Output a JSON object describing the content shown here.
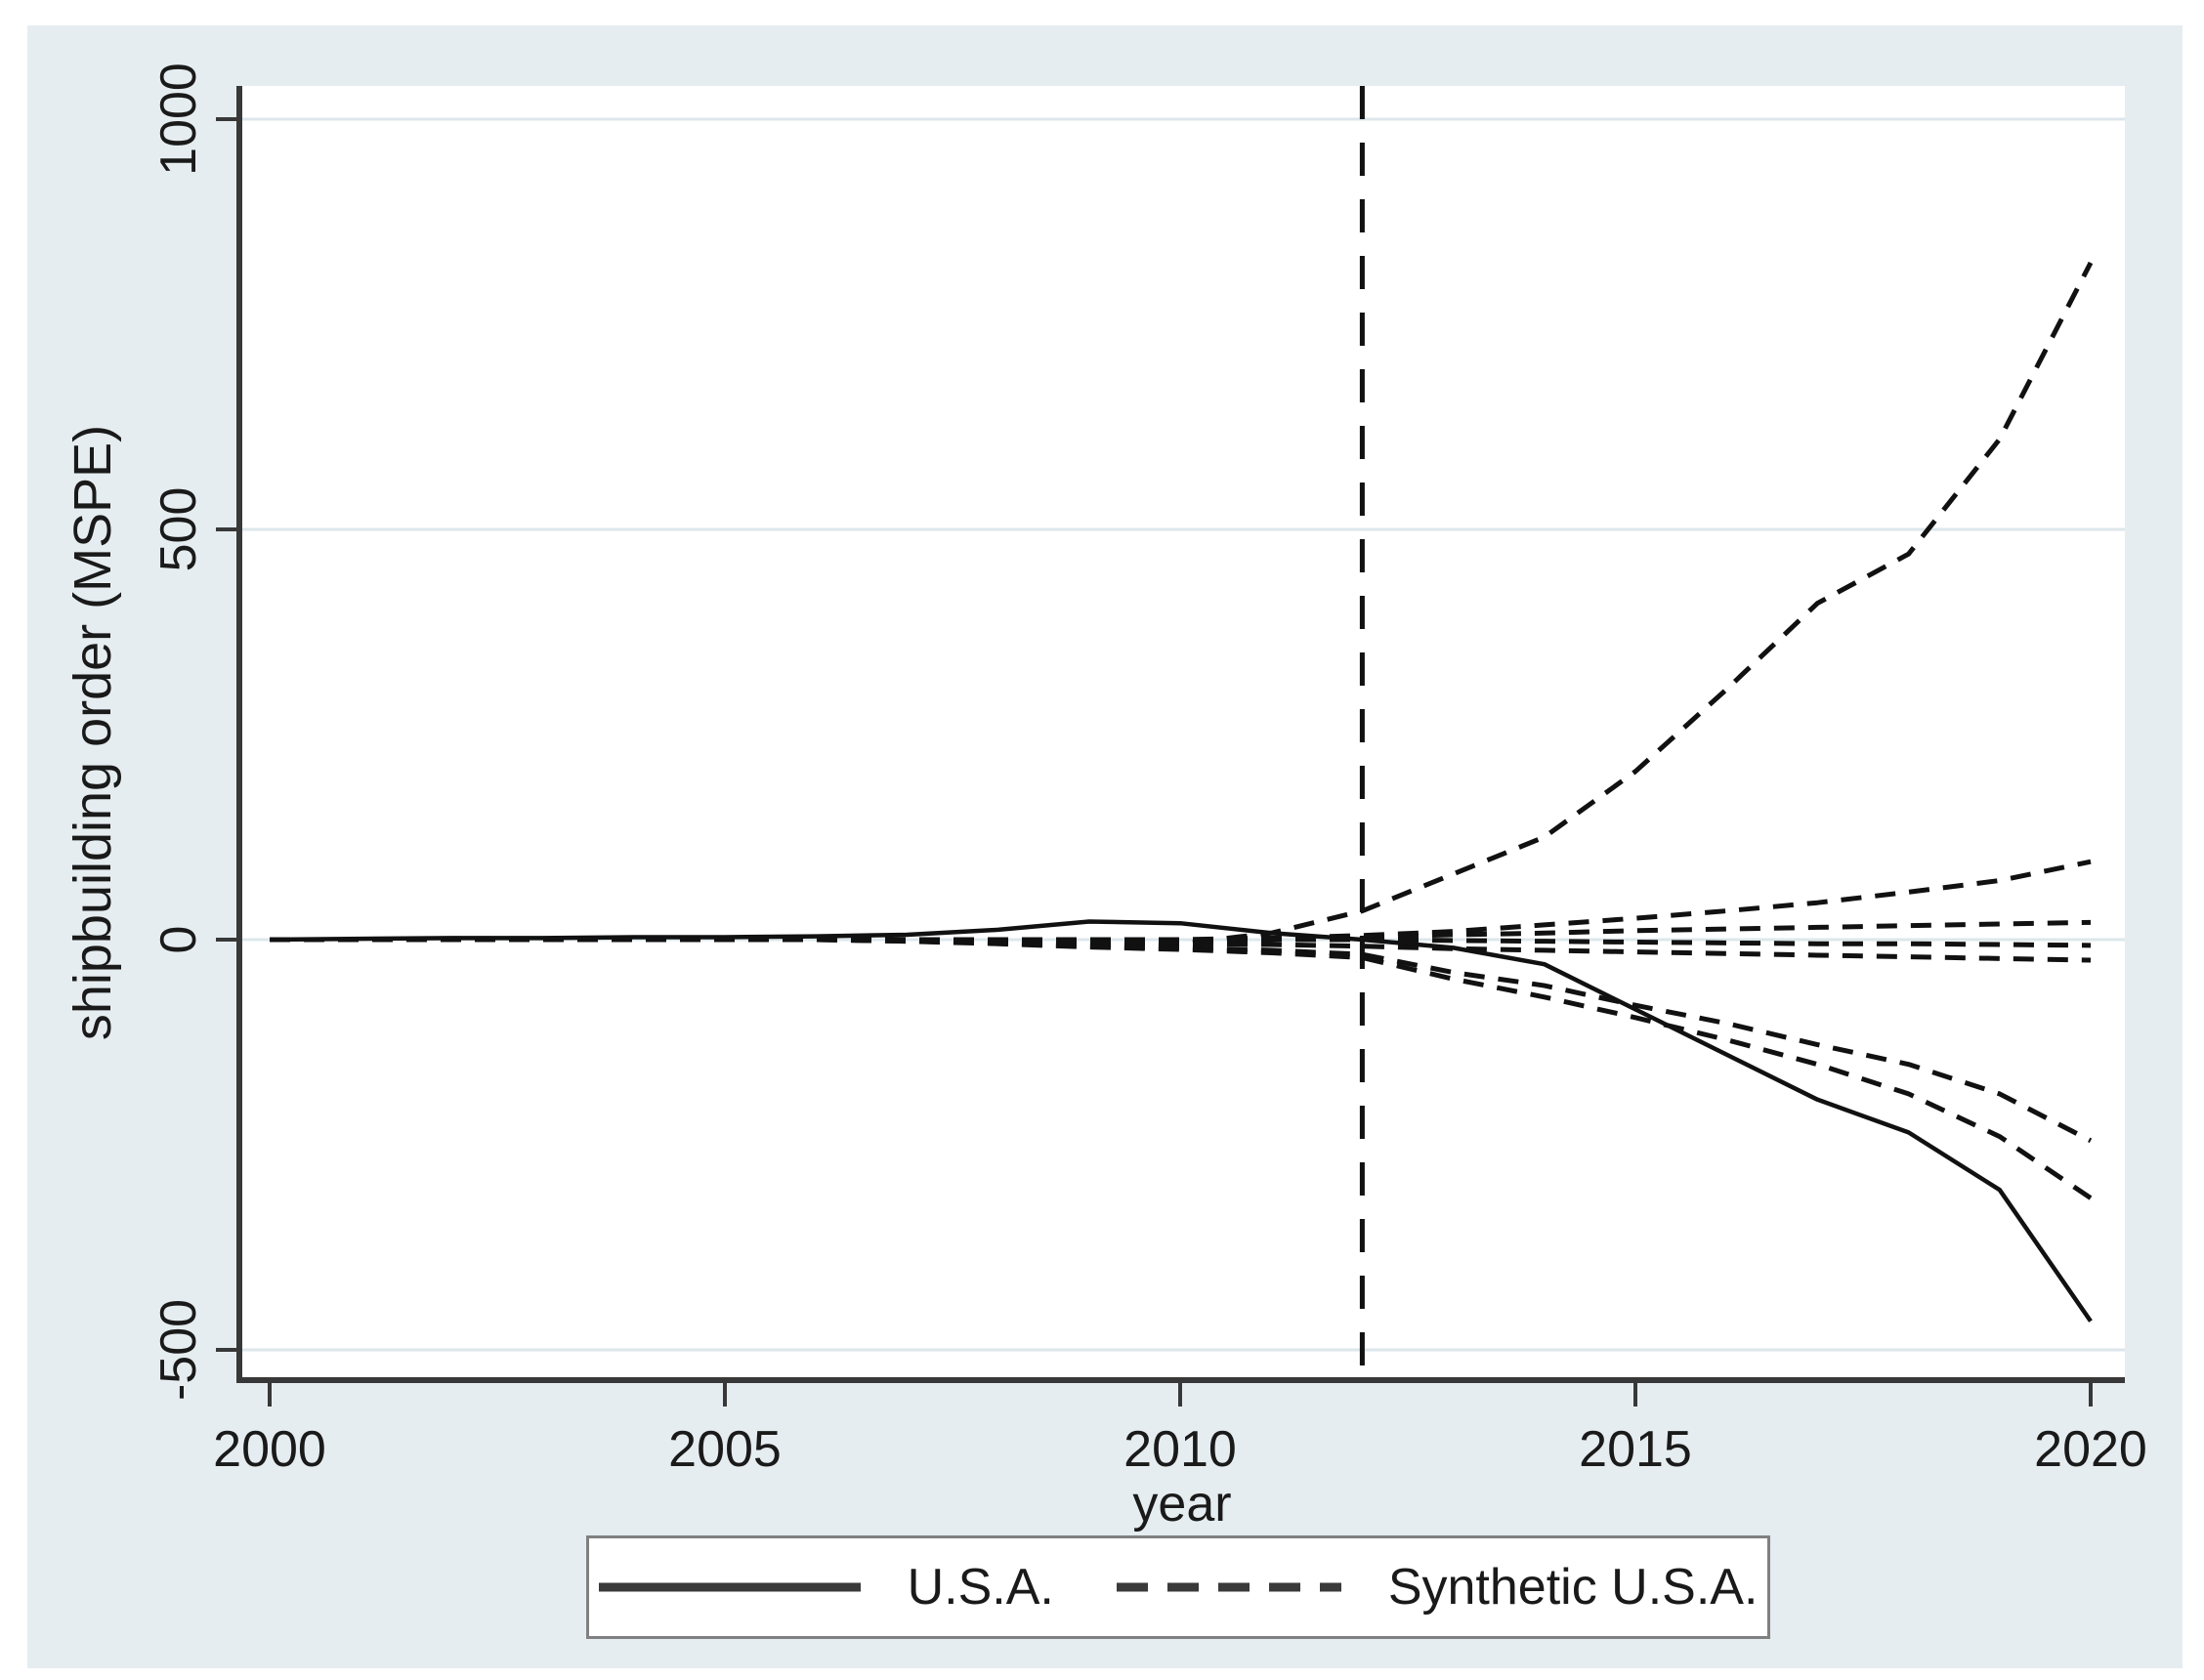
{
  "figure": {
    "background_color": "#e6edf0",
    "plot_background_color": "#ffffff",
    "line_color": "#111111",
    "axis_color": "#383838",
    "gridline_color": "#dde7eb"
  },
  "chart_data": {
    "type": "line",
    "title": "",
    "xlabel": "year",
    "ylabel": "shipbuilding order (MSPE)",
    "x_ticks": [
      2000,
      2005,
      2010,
      2015,
      2020
    ],
    "y_ticks": [
      -500,
      0,
      500,
      1000
    ],
    "xlim": [
      1999.7,
      2020.4
    ],
    "ylim": [
      -540,
      1040
    ],
    "grid": "horizontal",
    "treatment_line_x": 2012,
    "legend": {
      "position": "bottom",
      "entries": [
        {
          "label": "U.S.A.",
          "style": "solid"
        },
        {
          "label": "Synthetic U.S.A.",
          "style": "dashed"
        }
      ]
    },
    "x": [
      2000,
      2001,
      2002,
      2003,
      2004,
      2005,
      2006,
      2007,
      2008,
      2009,
      2010,
      2011,
      2012,
      2013,
      2014,
      2015,
      2016,
      2017,
      2018,
      2019,
      2020
    ],
    "series": [
      {
        "id": "usa-gap",
        "legend_group": "U.S.A.",
        "style": "solid",
        "values": [
          0,
          1,
          2,
          2,
          3,
          3,
          4,
          6,
          12,
          22,
          20,
          8,
          0,
          -10,
          -30,
          -85,
          -140,
          -195,
          -235,
          -305,
          -465
        ]
      },
      {
        "id": "synthetic-upper-extreme",
        "legend_group": "Synthetic U.S.A.",
        "style": "dashed",
        "values": [
          0,
          0,
          0,
          0,
          0,
          0,
          0,
          0,
          -2,
          -4,
          -5,
          8,
          35,
          80,
          125,
          205,
          305,
          410,
          470,
          610,
          825
        ]
      },
      {
        "id": "synthetic-rising",
        "legend_group": "Synthetic U.S.A.",
        "style": "dashed",
        "values": [
          0,
          0,
          0,
          0,
          0,
          0,
          0,
          0,
          0,
          0,
          0,
          2,
          5,
          10,
          18,
          26,
          35,
          45,
          58,
          72,
          95
        ]
      },
      {
        "id": "synthetic-flat-high",
        "legend_group": "Synthetic U.S.A.",
        "style": "dashed",
        "values": [
          0,
          0,
          0,
          0,
          0,
          0,
          0,
          0,
          0,
          0,
          0,
          0,
          3,
          6,
          8,
          11,
          13,
          15,
          17,
          19,
          21
        ]
      },
      {
        "id": "synthetic-flat-mid",
        "legend_group": "Synthetic U.S.A.",
        "style": "dashed",
        "values": [
          0,
          0,
          0,
          0,
          0,
          0,
          0,
          0,
          0,
          0,
          0,
          0,
          0,
          -1,
          -2,
          -3,
          -4,
          -5,
          -5,
          -6,
          -7
        ]
      },
      {
        "id": "synthetic-flat-low",
        "legend_group": "Synthetic U.S.A.",
        "style": "dashed",
        "values": [
          0,
          0,
          0,
          0,
          0,
          0,
          0,
          0,
          -2,
          -3,
          -5,
          -6,
          -8,
          -11,
          -13,
          -15,
          -17,
          -19,
          -21,
          -23,
          -25
        ]
      },
      {
        "id": "synthetic-declining-1",
        "legend_group": "Synthetic U.S.A.",
        "style": "dashed",
        "values": [
          0,
          0,
          0,
          0,
          0,
          0,
          0,
          -2,
          -4,
          -8,
          -10,
          -13,
          -18,
          -40,
          -56,
          -80,
          -102,
          -128,
          -152,
          -188,
          -245
        ]
      },
      {
        "id": "synthetic-declining-2",
        "legend_group": "Synthetic U.S.A.",
        "style": "dashed",
        "values": [
          0,
          0,
          0,
          0,
          0,
          0,
          0,
          -2,
          -5,
          -9,
          -12,
          -16,
          -22,
          -48,
          -70,
          -95,
          -122,
          -152,
          -188,
          -240,
          -315
        ]
      }
    ]
  }
}
